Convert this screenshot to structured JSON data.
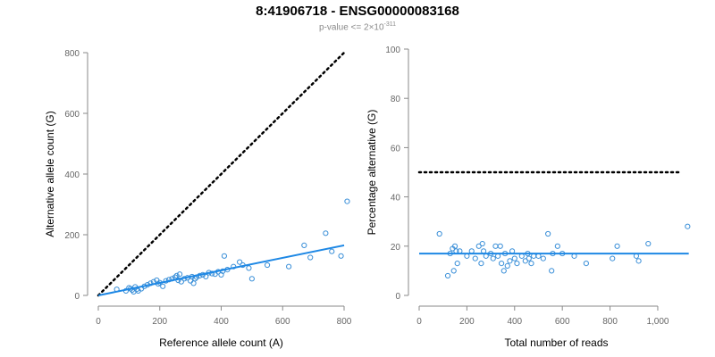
{
  "title": "8:41906718 - ENSG00000083168",
  "subtitle": {
    "prefix": "p-value <= 2×10",
    "exponent": "-311"
  },
  "colors": {
    "points": "#3a8fd8",
    "fit_line": "#1e88e5",
    "reference_line": "#000000",
    "axis": "#8a8a8a",
    "tick_label": "#666666"
  },
  "chart_data": [
    {
      "type": "scatter",
      "xlabel": "Reference allele count (A)",
      "ylabel": "Alternative allele count (G)",
      "xlim": [
        0,
        800
      ],
      "ylim": [
        0,
        800
      ],
      "x_ticks": [
        0,
        200,
        400,
        600,
        800
      ],
      "y_ticks": [
        0,
        200,
        400,
        600,
        800
      ],
      "x_tick_labels": [
        "0",
        "200",
        "400",
        "600",
        "800"
      ],
      "y_tick_labels": [
        "0",
        "200",
        "400",
        "600",
        "800"
      ],
      "grid": false,
      "reference_line": {
        "style": "dotted",
        "points": [
          [
            0,
            0
          ],
          [
            800,
            800
          ]
        ]
      },
      "fit_line": {
        "style": "solid",
        "points": [
          [
            0,
            0
          ],
          [
            800,
            165
          ]
        ]
      },
      "points": [
        [
          60,
          20
        ],
        [
          90,
          15
        ],
        [
          100,
          25
        ],
        [
          105,
          22
        ],
        [
          110,
          18
        ],
        [
          115,
          12
        ],
        [
          120,
          28
        ],
        [
          125,
          20
        ],
        [
          130,
          15
        ],
        [
          140,
          22
        ],
        [
          150,
          30
        ],
        [
          160,
          35
        ],
        [
          170,
          40
        ],
        [
          180,
          45
        ],
        [
          190,
          50
        ],
        [
          195,
          38
        ],
        [
          200,
          42
        ],
        [
          210,
          30
        ],
        [
          220,
          48
        ],
        [
          230,
          52
        ],
        [
          240,
          55
        ],
        [
          250,
          60
        ],
        [
          255,
          65
        ],
        [
          260,
          50
        ],
        [
          265,
          70
        ],
        [
          270,
          45
        ],
        [
          280,
          55
        ],
        [
          290,
          58
        ],
        [
          300,
          48
        ],
        [
          305,
          62
        ],
        [
          310,
          40
        ],
        [
          315,
          55
        ],
        [
          320,
          60
        ],
        [
          330,
          65
        ],
        [
          340,
          68
        ],
        [
          350,
          62
        ],
        [
          360,
          75
        ],
        [
          370,
          72
        ],
        [
          380,
          70
        ],
        [
          390,
          78
        ],
        [
          400,
          68
        ],
        [
          405,
          80
        ],
        [
          410,
          130
        ],
        [
          420,
          85
        ],
        [
          440,
          95
        ],
        [
          460,
          110
        ],
        [
          470,
          100
        ],
        [
          490,
          90
        ],
        [
          500,
          55
        ],
        [
          550,
          100
        ],
        [
          620,
          95
        ],
        [
          670,
          165
        ],
        [
          690,
          125
        ],
        [
          740,
          205
        ],
        [
          760,
          145
        ],
        [
          790,
          130
        ],
        [
          810,
          310
        ]
      ]
    },
    {
      "type": "scatter",
      "xlabel": "Total number of reads",
      "ylabel": "Percentage alternative (G)",
      "xlim": [
        0,
        1150
      ],
      "ylim": [
        0,
        100
      ],
      "x_ticks": [
        0,
        200,
        400,
        600,
        800,
        1000
      ],
      "y_ticks": [
        0,
        20,
        40,
        60,
        80,
        100
      ],
      "x_tick_labels": [
        "0",
        "200",
        "400",
        "600",
        "800",
        "1,000"
      ],
      "y_tick_labels": [
        "0",
        "20",
        "40",
        "60",
        "80",
        "100"
      ],
      "grid": false,
      "reference_line": {
        "style": "dotted",
        "points": [
          [
            0,
            50
          ],
          [
            1100,
            50
          ]
        ]
      },
      "fit_line": {
        "style": "solid",
        "points": [
          [
            0,
            17
          ],
          [
            1130,
            17
          ]
        ]
      },
      "points": [
        [
          85,
          25
        ],
        [
          120,
          8
        ],
        [
          130,
          17
        ],
        [
          140,
          19
        ],
        [
          145,
          10
        ],
        [
          150,
          20
        ],
        [
          155,
          18
        ],
        [
          160,
          13
        ],
        [
          170,
          18
        ],
        [
          200,
          16
        ],
        [
          220,
          18
        ],
        [
          235,
          15
        ],
        [
          250,
          20
        ],
        [
          260,
          13
        ],
        [
          265,
          21
        ],
        [
          270,
          18
        ],
        [
          280,
          16
        ],
        [
          300,
          17
        ],
        [
          310,
          15
        ],
        [
          320,
          20
        ],
        [
          330,
          16
        ],
        [
          340,
          20
        ],
        [
          345,
          13
        ],
        [
          355,
          10
        ],
        [
          360,
          17
        ],
        [
          370,
          12
        ],
        [
          380,
          14
        ],
        [
          390,
          18
        ],
        [
          400,
          15
        ],
        [
          410,
          13
        ],
        [
          430,
          16
        ],
        [
          445,
          14
        ],
        [
          455,
          17
        ],
        [
          460,
          15
        ],
        [
          470,
          13
        ],
        [
          480,
          16
        ],
        [
          500,
          16
        ],
        [
          520,
          15
        ],
        [
          540,
          25
        ],
        [
          555,
          10
        ],
        [
          560,
          17
        ],
        [
          580,
          20
        ],
        [
          600,
          17
        ],
        [
          650,
          16
        ],
        [
          700,
          13
        ],
        [
          810,
          15
        ],
        [
          830,
          20
        ],
        [
          910,
          16
        ],
        [
          920,
          14
        ],
        [
          960,
          21
        ],
        [
          1125,
          28
        ]
      ]
    }
  ]
}
